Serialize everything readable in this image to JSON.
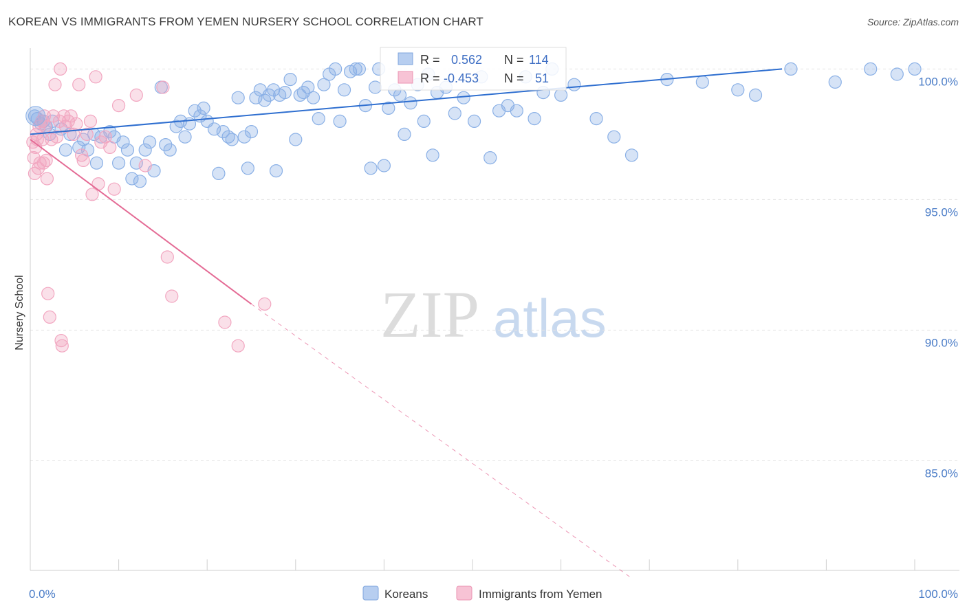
{
  "title": "KOREAN VS IMMIGRANTS FROM YEMEN NURSERY SCHOOL CORRELATION CHART",
  "source": "Source: ZipAtlas.com",
  "watermark": {
    "zip": "ZIP",
    "atlas": "atlas"
  },
  "chart_data": {
    "type": "scatter",
    "ylabel": "Nursery School",
    "xlim": [
      0,
      100
    ],
    "ylim": [
      80.8,
      100.8
    ],
    "x_tick_labels": [
      {
        "x": 0,
        "label": "0.0%"
      },
      {
        "x": 100,
        "label": "100.0%"
      }
    ],
    "y_ticks": [
      {
        "y": 100,
        "label": "100.0%"
      },
      {
        "y": 95,
        "label": "95.0%"
      },
      {
        "y": 90,
        "label": "90.0%"
      },
      {
        "y": 85,
        "label": "85.0%"
      }
    ],
    "grid": true,
    "legend_position": "bottom-center",
    "stats": [
      {
        "r_label": "R =",
        "r_value": "0.562",
        "n_label": "N =",
        "n_value": "114"
      },
      {
        "r_label": "R =",
        "r_value": "-0.453",
        "n_label": "N =",
        "n_value": "51"
      }
    ],
    "series": [
      {
        "name": "Koreans",
        "color": "#8ab0e6",
        "line_color": "#2f6fd0",
        "trend": {
          "x0": 0,
          "y0": 97.5,
          "x1": 85,
          "y1": 100.0
        },
        "points": [
          [
            0.5,
            98.2
          ],
          [
            0.8,
            98.1
          ],
          [
            1.2,
            97.9
          ],
          [
            1.5,
            98.0
          ],
          [
            1.8,
            97.8
          ],
          [
            2.2,
            97.5
          ],
          [
            2.5,
            98.0
          ],
          [
            3.5,
            97.7
          ],
          [
            4.0,
            96.9
          ],
          [
            4.5,
            97.5
          ],
          [
            5.5,
            97.0
          ],
          [
            6.0,
            97.3
          ],
          [
            6.5,
            96.9
          ],
          [
            7.2,
            97.5
          ],
          [
            7.5,
            96.4
          ],
          [
            8.0,
            97.4
          ],
          [
            9.0,
            97.6
          ],
          [
            9.5,
            97.4
          ],
          [
            10.0,
            96.4
          ],
          [
            10.5,
            97.2
          ],
          [
            11.0,
            96.9
          ],
          [
            11.5,
            95.8
          ],
          [
            12.0,
            96.4
          ],
          [
            12.4,
            95.7
          ],
          [
            13.0,
            96.9
          ],
          [
            13.5,
            97.2
          ],
          [
            14.0,
            96.1
          ],
          [
            14.8,
            99.3
          ],
          [
            15.3,
            97.1
          ],
          [
            15.8,
            96.9
          ],
          [
            16.5,
            97.8
          ],
          [
            17.0,
            98.0
          ],
          [
            17.5,
            97.4
          ],
          [
            18.0,
            97.9
          ],
          [
            18.6,
            98.4
          ],
          [
            19.2,
            98.2
          ],
          [
            19.6,
            98.5
          ],
          [
            20.0,
            98.0
          ],
          [
            20.8,
            97.7
          ],
          [
            21.3,
            96.0
          ],
          [
            21.8,
            97.6
          ],
          [
            22.4,
            97.4
          ],
          [
            22.8,
            97.3
          ],
          [
            23.5,
            98.9
          ],
          [
            24.2,
            97.4
          ],
          [
            24.6,
            96.2
          ],
          [
            25.0,
            97.6
          ],
          [
            25.5,
            98.9
          ],
          [
            26.0,
            99.2
          ],
          [
            26.5,
            98.8
          ],
          [
            27.0,
            99.0
          ],
          [
            27.5,
            99.2
          ],
          [
            27.8,
            96.1
          ],
          [
            28.2,
            99.0
          ],
          [
            28.8,
            99.1
          ],
          [
            29.4,
            99.6
          ],
          [
            30.0,
            97.3
          ],
          [
            30.5,
            99.0
          ],
          [
            30.9,
            99.1
          ],
          [
            31.4,
            99.3
          ],
          [
            32.0,
            98.9
          ],
          [
            32.6,
            98.1
          ],
          [
            33.2,
            99.4
          ],
          [
            33.8,
            99.8
          ],
          [
            34.5,
            100.0
          ],
          [
            35.0,
            98.0
          ],
          [
            35.5,
            99.2
          ],
          [
            36.2,
            99.9
          ],
          [
            36.8,
            100.0
          ],
          [
            37.2,
            100.0
          ],
          [
            37.9,
            98.6
          ],
          [
            38.5,
            96.2
          ],
          [
            39.0,
            99.3
          ],
          [
            39.4,
            100.0
          ],
          [
            40.0,
            96.3
          ],
          [
            40.5,
            98.5
          ],
          [
            41.2,
            99.2
          ],
          [
            41.8,
            99.0
          ],
          [
            42.3,
            97.5
          ],
          [
            43.0,
            98.7
          ],
          [
            43.8,
            99.4
          ],
          [
            44.5,
            98.0
          ],
          [
            45.0,
            99.8
          ],
          [
            45.5,
            96.7
          ],
          [
            46.0,
            99.1
          ],
          [
            47.0,
            99.3
          ],
          [
            48.0,
            98.3
          ],
          [
            49.0,
            98.9
          ],
          [
            50.2,
            98.0
          ],
          [
            51.0,
            99.7
          ],
          [
            52.0,
            96.6
          ],
          [
            53.0,
            98.4
          ],
          [
            54.0,
            98.6
          ],
          [
            55.0,
            98.4
          ],
          [
            56.0,
            99.7
          ],
          [
            57.0,
            98.1
          ],
          [
            58.0,
            99.1
          ],
          [
            59.0,
            100.0
          ],
          [
            60.0,
            99.0
          ],
          [
            61.5,
            99.4
          ],
          [
            64.0,
            98.1
          ],
          [
            66.0,
            97.4
          ],
          [
            68.0,
            96.7
          ],
          [
            72.0,
            99.6
          ],
          [
            76.0,
            99.5
          ],
          [
            80.0,
            99.2
          ],
          [
            82.0,
            99.0
          ],
          [
            86.0,
            100.0
          ],
          [
            91.0,
            99.5
          ],
          [
            95.0,
            100.0
          ],
          [
            98.0,
            99.8
          ],
          [
            100.0,
            100.0
          ]
        ]
      },
      {
        "name": "Immigrants from Yemen",
        "color": "#f2a6c0",
        "line_color": "#e46b95",
        "trend": {
          "x0": 0,
          "y0": 97.3,
          "x1": 25,
          "y1": 91.0
        },
        "trend_dashed": {
          "x0": 25,
          "y0": 91.0,
          "x1": 68,
          "y1": 80.5
        },
        "points": [
          [
            0.3,
            97.2
          ],
          [
            0.4,
            96.6
          ],
          [
            0.5,
            96.0
          ],
          [
            0.6,
            97.0
          ],
          [
            0.7,
            97.5
          ],
          [
            0.8,
            97.3
          ],
          [
            0.9,
            96.2
          ],
          [
            1.0,
            97.8
          ],
          [
            1.1,
            96.4
          ],
          [
            1.3,
            98.0
          ],
          [
            1.4,
            97.3
          ],
          [
            1.5,
            96.4
          ],
          [
            1.6,
            98.2
          ],
          [
            1.7,
            97.8
          ],
          [
            1.8,
            96.5
          ],
          [
            1.9,
            95.8
          ],
          [
            2.0,
            91.4
          ],
          [
            2.2,
            90.5
          ],
          [
            2.4,
            97.3
          ],
          [
            2.6,
            98.2
          ],
          [
            2.8,
            99.4
          ],
          [
            3.0,
            97.4
          ],
          [
            3.3,
            98.0
          ],
          [
            3.4,
            100.0
          ],
          [
            3.5,
            89.6
          ],
          [
            3.6,
            89.4
          ],
          [
            3.8,
            98.2
          ],
          [
            4.0,
            97.8
          ],
          [
            4.3,
            98.0
          ],
          [
            4.6,
            98.2
          ],
          [
            4.9,
            97.5
          ],
          [
            5.2,
            97.9
          ],
          [
            5.5,
            99.4
          ],
          [
            5.8,
            96.7
          ],
          [
            6.0,
            96.5
          ],
          [
            6.4,
            97.5
          ],
          [
            6.8,
            98.0
          ],
          [
            7.0,
            95.2
          ],
          [
            7.4,
            99.7
          ],
          [
            7.7,
            95.6
          ],
          [
            8.0,
            97.2
          ],
          [
            8.5,
            97.4
          ],
          [
            9.0,
            97.0
          ],
          [
            9.5,
            95.4
          ],
          [
            10.0,
            98.6
          ],
          [
            12.0,
            99.0
          ],
          [
            13.0,
            96.3
          ],
          [
            15.0,
            99.3
          ],
          [
            15.5,
            92.8
          ],
          [
            16.0,
            91.3
          ],
          [
            22.0,
            90.3
          ],
          [
            23.5,
            89.4
          ],
          [
            26.5,
            91.0
          ]
        ]
      }
    ]
  }
}
